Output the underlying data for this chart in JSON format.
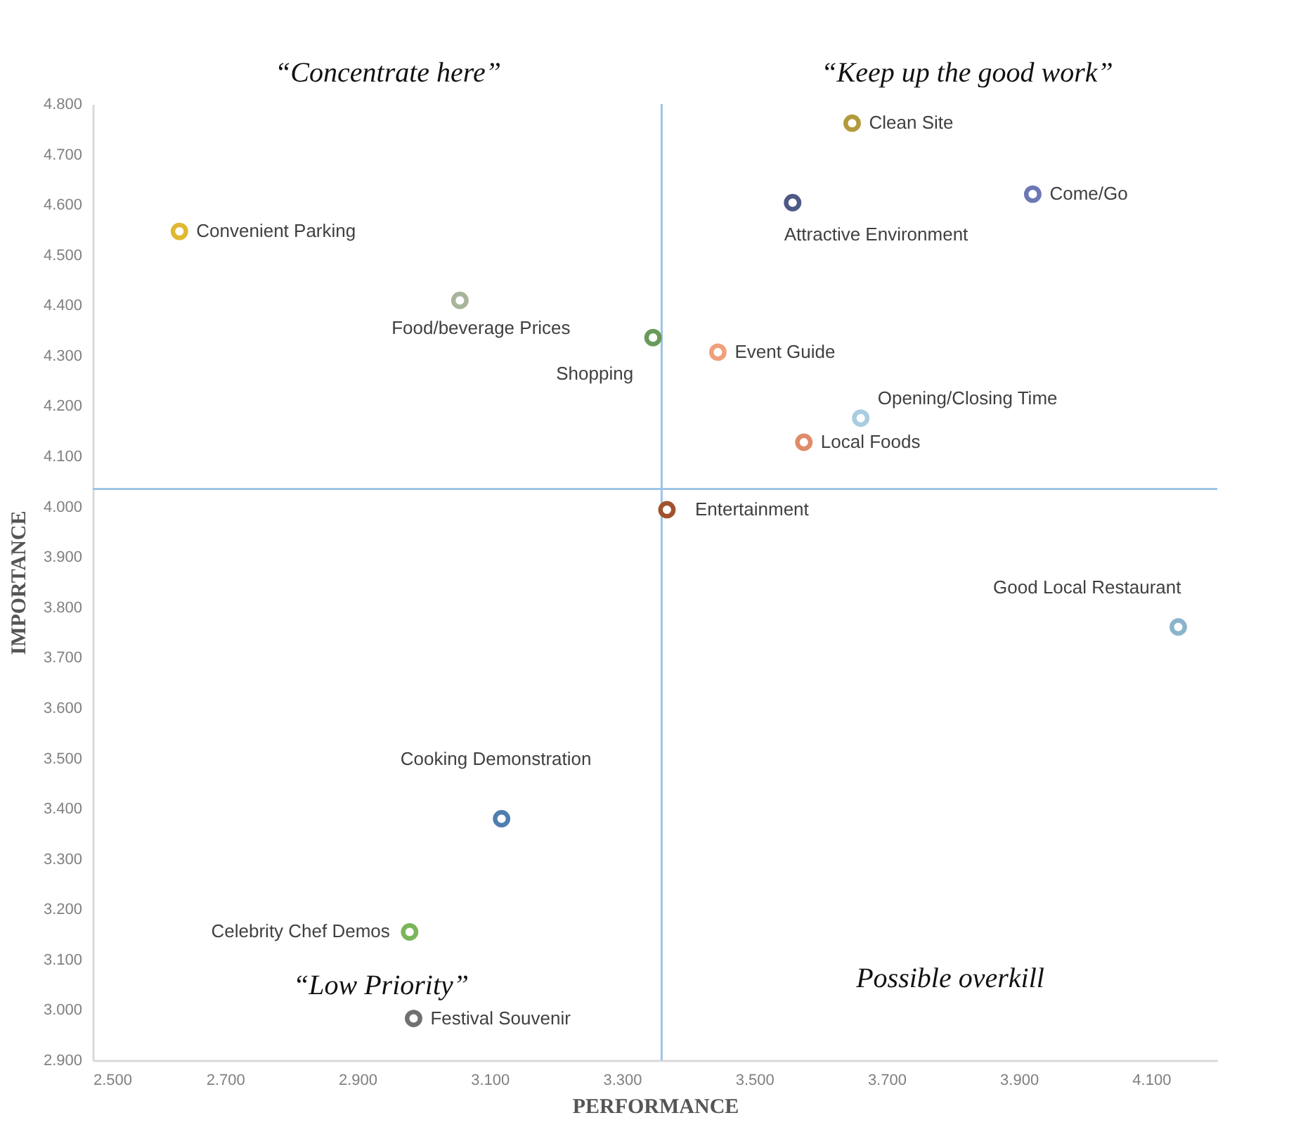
{
  "chart_data": {
    "type": "scatter",
    "xlabel": "PERFORMANCE",
    "ylabel": "IMPORTANCE",
    "xlim": [
      2.5,
      4.2
    ],
    "ylim": [
      2.9,
      4.8
    ],
    "xticks": [
      {
        "value": 2.5,
        "label": "2.500"
      },
      {
        "value": 2.7,
        "label": "2.700"
      },
      {
        "value": 2.9,
        "label": "2.900"
      },
      {
        "value": 3.1,
        "label": "3.100"
      },
      {
        "value": 3.3,
        "label": "3.300"
      },
      {
        "value": 3.5,
        "label": "3.500"
      },
      {
        "value": 3.7,
        "label": "3.700"
      },
      {
        "value": 3.9,
        "label": "3.900"
      },
      {
        "value": 4.1,
        "label": "4.100"
      }
    ],
    "yticks": [
      {
        "value": 2.9,
        "label": "2.900"
      },
      {
        "value": 3.0,
        "label": "3.000"
      },
      {
        "value": 3.1,
        "label": "3.100"
      },
      {
        "value": 3.2,
        "label": "3.200"
      },
      {
        "value": 3.3,
        "label": "3.300"
      },
      {
        "value": 3.4,
        "label": "3.400"
      },
      {
        "value": 3.5,
        "label": "3.500"
      },
      {
        "value": 3.6,
        "label": "3.600"
      },
      {
        "value": 3.7,
        "label": "3.700"
      },
      {
        "value": 3.8,
        "label": "3.800"
      },
      {
        "value": 3.9,
        "label": "3.900"
      },
      {
        "value": 4.0,
        "label": "4.000"
      },
      {
        "value": 4.1,
        "label": "4.100"
      },
      {
        "value": 4.2,
        "label": "4.200"
      },
      {
        "value": 4.3,
        "label": "4.300"
      },
      {
        "value": 4.4,
        "label": "4.400"
      },
      {
        "value": 4.5,
        "label": "4.500"
      },
      {
        "value": 4.6,
        "label": "4.600"
      },
      {
        "value": 4.7,
        "label": "4.700"
      },
      {
        "value": 4.8,
        "label": "4.800"
      }
    ],
    "grid": false,
    "legend": false,
    "marker": "circle",
    "series": [
      {
        "name": "Clean Site",
        "color": "#b39a3a",
        "x": [
          3.648
        ],
        "values": [
          4.762
        ]
      },
      {
        "name": "Come/Go",
        "color": "#6b78b5",
        "x": [
          3.921
        ],
        "values": [
          4.621
        ]
      },
      {
        "name": "Attractive Environment",
        "color": "#4e5a86",
        "x": [
          3.558
        ],
        "values": [
          4.604
        ]
      },
      {
        "name": "Convenient Parking",
        "color": "#e0b830",
        "x": [
          2.631
        ],
        "values": [
          4.547
        ]
      },
      {
        "name": "Food/beverage Prices",
        "color": "#a7b59a",
        "x": [
          3.055
        ],
        "values": [
          4.41
        ]
      },
      {
        "name": "Shopping",
        "color": "#6a9a5a",
        "x": [
          3.347
        ],
        "values": [
          4.336
        ]
      },
      {
        "name": "Event Guide",
        "color": "#f0a07a",
        "x": [
          3.445
        ],
        "values": [
          4.307
        ]
      },
      {
        "name": "Opening/Closing Time",
        "color": "#a8cde0",
        "x": [
          3.661
        ],
        "values": [
          4.176
        ]
      },
      {
        "name": "Local Foods",
        "color": "#e08a6a",
        "x": [
          3.575
        ],
        "values": [
          4.128
        ]
      },
      {
        "name": "Entertainment",
        "color": "#a0522d",
        "x": [
          3.368
        ],
        "values": [
          3.994
        ]
      },
      {
        "name": "Good Local Restaurant",
        "color": "#8ab4cc",
        "x": [
          4.141
        ],
        "values": [
          3.761
        ]
      },
      {
        "name": "Cooking Demonstration",
        "color": "#4f7fb0",
        "x": [
          3.118
        ],
        "values": [
          3.38
        ]
      },
      {
        "name": "Celebrity Chef Demos",
        "color": "#7ab55a",
        "x": [
          2.979
        ],
        "values": [
          3.155
        ]
      },
      {
        "name": "Festival Souvenir",
        "color": "#707070",
        "x": [
          2.985
        ],
        "values": [
          2.983
        ]
      }
    ],
    "ref_lines": [
      {
        "axis": "x",
        "value": 3.36,
        "color": "#9dc3e6"
      },
      {
        "axis": "y",
        "value": 4.035,
        "color": "#9dc3e6"
      }
    ],
    "annotations": [
      "“Concentrate here”",
      "“Keep up the good work”",
      "“Low Priority”",
      "Possible overkill"
    ]
  }
}
